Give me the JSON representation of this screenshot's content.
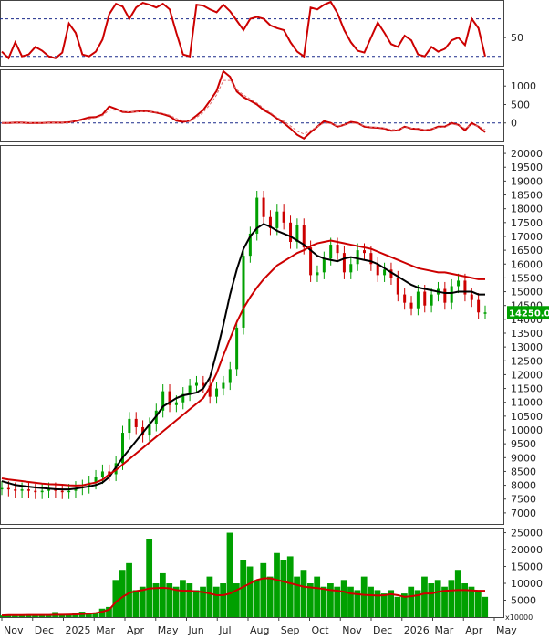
{
  "chart_data": [
    {
      "panel": "rsi",
      "type": "line",
      "yticks": [
        50
      ],
      "reference_lines": [
        30,
        70
      ],
      "series": [
        {
          "color": "#cc0000",
          "values": [
            35,
            28,
            45,
            30,
            32,
            40,
            36,
            30,
            28,
            34,
            65,
            55,
            32,
            30,
            35,
            48,
            75,
            86,
            83,
            70,
            82,
            87,
            85,
            82,
            86,
            80,
            55,
            32,
            30,
            85,
            84,
            80,
            77,
            85,
            78,
            68,
            58,
            70,
            72,
            70,
            63,
            60,
            58,
            45,
            35,
            30,
            82,
            80,
            85,
            88,
            76,
            58,
            45,
            36,
            34,
            50,
            66,
            55,
            43,
            40,
            52,
            47,
            32,
            30,
            40,
            35,
            38,
            47,
            50,
            42,
            70,
            60,
            30
          ]
        }
      ]
    },
    {
      "panel": "macd",
      "type": "line",
      "yticks": [
        1000,
        500,
        0
      ],
      "series": [
        {
          "color": "#cc0000",
          "values": [
            0,
            0,
            10,
            10,
            0,
            0,
            0,
            10,
            10,
            10,
            20,
            50,
            100,
            150,
            160,
            230,
            450,
            380,
            300,
            290,
            310,
            320,
            310,
            280,
            240,
            180,
            60,
            30,
            60,
            200,
            350,
            600,
            870,
            1400,
            1250,
            850,
            700,
            600,
            500,
            350,
            250,
            120,
            0,
            -150,
            -320,
            -420,
            -250,
            -100,
            50,
            0,
            -100,
            -50,
            30,
            0,
            -100,
            -120,
            -130,
            -150,
            -210,
            -200,
            -100,
            -150,
            -160,
            -200,
            -170,
            -100,
            -100,
            0,
            -50,
            -200,
            0,
            -100,
            -250
          ]
        },
        {
          "color": "#e07070",
          "values": [
            0,
            0,
            5,
            5,
            5,
            0,
            0,
            5,
            5,
            10,
            15,
            30,
            70,
            110,
            140,
            200,
            350,
            350,
            320,
            300,
            300,
            310,
            305,
            290,
            260,
            210,
            120,
            60,
            60,
            150,
            280,
            500,
            760,
            1150,
            1150,
            900,
            760,
            650,
            540,
            400,
            280,
            150,
            50,
            -80,
            -220,
            -300,
            -200,
            -100,
            0,
            -20,
            -80,
            -60,
            0,
            -20,
            -80,
            -110,
            -120,
            -140,
            -180,
            -180,
            -120,
            -140,
            -150,
            -180,
            -160,
            -120,
            -110,
            -30,
            -60,
            -150,
            -40,
            -90,
            -180
          ]
        }
      ]
    },
    {
      "panel": "price",
      "type": "line",
      "yticks": [
        20000,
        19500,
        19000,
        18500,
        18000,
        17500,
        17000,
        16500,
        16000,
        15500,
        15000,
        14500,
        14000,
        13500,
        13000,
        12500,
        12000,
        11500,
        11000,
        10500,
        10000,
        9500,
        9000,
        8500,
        8000,
        7500,
        7000
      ],
      "xticks": [
        "Nov",
        "Dec",
        "2025",
        "Mar",
        "Apr",
        "May",
        "Jun",
        "Jul",
        "Aug",
        "Sep",
        "Oct",
        "Nov",
        "Dec",
        "2026",
        "Mar",
        "Apr",
        "May"
      ],
      "last_price_label": "14250.00",
      "series": [
        {
          "name_hint": "close",
          "color": "#00a000",
          "values": [
            7900,
            7850,
            7800,
            7850,
            7800,
            7750,
            7800,
            7850,
            7800,
            7750,
            7800,
            7900,
            7950,
            8100,
            8300,
            8500,
            8400,
            8800,
            9900,
            10400,
            10100,
            9800,
            10200,
            10700,
            11400,
            10900,
            11000,
            11300,
            11600,
            11700,
            11600,
            11200,
            11500,
            11700,
            12200,
            13700,
            16300,
            17100,
            18400,
            17700,
            17300,
            17900,
            17500,
            16800,
            17400,
            16600,
            15600,
            15700,
            16200,
            16700,
            16400,
            15700,
            16000,
            16500,
            16400,
            16000,
            15600,
            15800,
            15500,
            14900,
            14600,
            14400,
            15000,
            14500,
            14900,
            15100,
            14600,
            15200,
            15400,
            14900,
            14700,
            14250,
            14250
          ]
        },
        {
          "name_hint": "ma_short",
          "color": "#000000",
          "values": [
            8150,
            8080,
            8010,
            7980,
            7950,
            7920,
            7900,
            7880,
            7860,
            7850,
            7850,
            7880,
            7920,
            7960,
            8010,
            8100,
            8300,
            8650,
            9000,
            9300,
            9600,
            9900,
            10200,
            10500,
            10850,
            11000,
            11150,
            11250,
            11300,
            11350,
            11500,
            11900,
            12800,
            13800,
            14900,
            15800,
            16550,
            17000,
            17300,
            17450,
            17350,
            17200,
            17100,
            17000,
            16850,
            16700,
            16500,
            16300,
            16200,
            16150,
            16100,
            16200,
            16250,
            16200,
            16150,
            16100,
            16000,
            15850,
            15700,
            15550,
            15400,
            15250,
            15150,
            15100,
            15050,
            15000,
            14950,
            14950,
            15000,
            15000,
            15000,
            14900,
            14900
          ]
        },
        {
          "name_hint": "ma_long",
          "color": "#cc0000",
          "values": [
            8250,
            8210,
            8180,
            8150,
            8120,
            8090,
            8060,
            8040,
            8030,
            8020,
            8000,
            7990,
            8000,
            8050,
            8100,
            8200,
            8400,
            8550,
            8750,
            8950,
            9150,
            9350,
            9550,
            9750,
            9950,
            10150,
            10350,
            10550,
            10750,
            10950,
            11150,
            11550,
            12050,
            12700,
            13300,
            13900,
            14400,
            14800,
            15150,
            15450,
            15700,
            15950,
            16100,
            16250,
            16400,
            16500,
            16650,
            16750,
            16800,
            16850,
            16800,
            16750,
            16700,
            16650,
            16600,
            16550,
            16450,
            16350,
            16250,
            16150,
            16050,
            15950,
            15850,
            15800,
            15750,
            15700,
            15700,
            15650,
            15600,
            15550,
            15500,
            15450,
            15450
          ]
        }
      ]
    },
    {
      "panel": "volume",
      "type": "bar",
      "yticks": [
        25000,
        20000,
        15000,
        10000,
        5000
      ],
      "multiplier_label": "x10000",
      "series": [
        {
          "color": "#00a000",
          "values": [
            500,
            600,
            400,
            500,
            800,
            600,
            500,
            400,
            1500,
            600,
            900,
            1200,
            1600,
            1000,
            1300,
            2500,
            3000,
            11000,
            14000,
            16000,
            8000,
            9000,
            23000,
            10000,
            13000,
            10000,
            9000,
            11000,
            10000,
            8000,
            9000,
            12000,
            9000,
            10000,
            25000,
            10000,
            17000,
            15000,
            11000,
            16000,
            12000,
            19000,
            17000,
            18000,
            12000,
            14000,
            10000,
            12000,
            9000,
            10000,
            9000,
            11000,
            9000,
            8000,
            12000,
            9000,
            8000,
            7000,
            8000,
            6000,
            7000,
            9000,
            8000,
            12000,
            10000,
            11000,
            9000,
            11000,
            14000,
            10000,
            9000,
            8000,
            6000
          ]
        },
        {
          "name_hint": "volume_ma",
          "color": "#cc0000",
          "values": [
            500,
            600,
            600,
            600,
            650,
            650,
            650,
            650,
            700,
            700,
            750,
            800,
            900,
            1000,
            1200,
            1600,
            2200,
            4500,
            6000,
            7200,
            7700,
            8000,
            8500,
            8600,
            8700,
            8500,
            8000,
            7800,
            7800,
            7600,
            7400,
            7000,
            6500,
            6500,
            7000,
            8000,
            9000,
            10000,
            11000,
            11500,
            11500,
            11000,
            10500,
            10000,
            9500,
            9000,
            8800,
            8600,
            8300,
            8000,
            7800,
            7500,
            7000,
            6800,
            6600,
            6500,
            6400,
            6500,
            6800,
            6500,
            6000,
            6200,
            6500,
            7000,
            7000,
            7500,
            7800,
            7900,
            8000,
            8000,
            7900,
            7800,
            7800
          ]
        }
      ]
    }
  ]
}
